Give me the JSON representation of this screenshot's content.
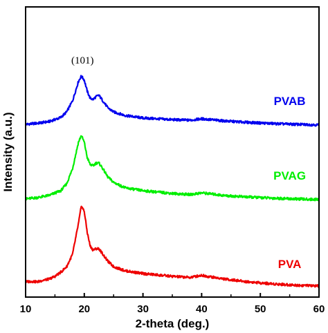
{
  "chart_data": {
    "type": "line",
    "title": "",
    "xlabel": "2-theta (deg.)",
    "ylabel": "Intensity (a.u.)",
    "xlim": [
      10,
      60
    ],
    "ylim": [
      0,
      100
    ],
    "x_ticks": [
      10,
      20,
      30,
      40,
      50,
      60
    ],
    "y_ticks_visible": false,
    "grid": false,
    "annotation": {
      "text": "(101)",
      "x": 19.7,
      "y": 82
    },
    "series": [
      {
        "name": "PVAB",
        "color": "#0000ee",
        "points": [
          [
            10,
            60.0
          ],
          [
            12,
            60.4
          ],
          [
            14,
            61.0
          ],
          [
            16,
            62.5
          ],
          [
            17,
            64.5
          ],
          [
            18,
            68.5
          ],
          [
            19,
            75.5
          ],
          [
            19.5,
            77.5
          ],
          [
            20,
            76.0
          ],
          [
            20.5,
            72.0
          ],
          [
            21,
            69.5
          ],
          [
            21.5,
            69.0
          ],
          [
            22,
            70.0
          ],
          [
            22.5,
            70.5
          ],
          [
            23,
            69.0
          ],
          [
            24,
            66.0
          ],
          [
            25,
            64.5
          ],
          [
            27,
            63.2
          ],
          [
            30,
            62.3
          ],
          [
            35,
            61.7
          ],
          [
            38,
            61.5
          ],
          [
            40,
            62.0
          ],
          [
            41,
            61.8
          ],
          [
            44,
            61.2
          ],
          [
            48,
            60.7
          ],
          [
            52,
            60.3
          ],
          [
            56,
            60.0
          ],
          [
            60,
            59.8
          ]
        ]
      },
      {
        "name": "PVAG",
        "color": "#00ee00",
        "points": [
          [
            10,
            33.0
          ],
          [
            12,
            33.5
          ],
          [
            14,
            34.3
          ],
          [
            16,
            36.0
          ],
          [
            17,
            38.5
          ],
          [
            18,
            44.0
          ],
          [
            19,
            53.5
          ],
          [
            19.5,
            56.0
          ],
          [
            20,
            53.5
          ],
          [
            20.5,
            48.0
          ],
          [
            21,
            45.5
          ],
          [
            21.5,
            45.0
          ],
          [
            22,
            46.0
          ],
          [
            22.5,
            46.0
          ],
          [
            23,
            44.5
          ],
          [
            24,
            41.0
          ],
          [
            25,
            39.0
          ],
          [
            27,
            37.0
          ],
          [
            30,
            36.0
          ],
          [
            35,
            35.0
          ],
          [
            38,
            34.6
          ],
          [
            40,
            35.2
          ],
          [
            41,
            35.0
          ],
          [
            44,
            34.2
          ],
          [
            48,
            33.7
          ],
          [
            52,
            33.3
          ],
          [
            56,
            33.0
          ],
          [
            60,
            32.8
          ]
        ]
      },
      {
        "name": "PVA",
        "color": "#ee0000",
        "points": [
          [
            10,
            3.0
          ],
          [
            11,
            3.2
          ],
          [
            12,
            3.0
          ],
          [
            13,
            3.6
          ],
          [
            14,
            4.0
          ],
          [
            15,
            5.0
          ],
          [
            16,
            6.5
          ],
          [
            17,
            8.5
          ],
          [
            18,
            13.0
          ],
          [
            19,
            24.0
          ],
          [
            19.5,
            30.5
          ],
          [
            20,
            28.5
          ],
          [
            20.5,
            21.0
          ],
          [
            21,
            16.0
          ],
          [
            21.5,
            14.5
          ],
          [
            22,
            15.0
          ],
          [
            22.5,
            15.0
          ],
          [
            23,
            13.5
          ],
          [
            24,
            10.5
          ],
          [
            25,
            8.5
          ],
          [
            27,
            7.0
          ],
          [
            30,
            6.0
          ],
          [
            35,
            5.0
          ],
          [
            38,
            4.6
          ],
          [
            40,
            5.4
          ],
          [
            41,
            5.0
          ],
          [
            44,
            4.0
          ],
          [
            48,
            3.0
          ],
          [
            52,
            2.3
          ],
          [
            56,
            1.8
          ],
          [
            60,
            1.5
          ]
        ]
      }
    ],
    "series_label_positions": {
      "PVAB": [
        55,
        67
      ],
      "PVAG": [
        55,
        40
      ],
      "PVA": [
        55,
        8
      ]
    }
  }
}
